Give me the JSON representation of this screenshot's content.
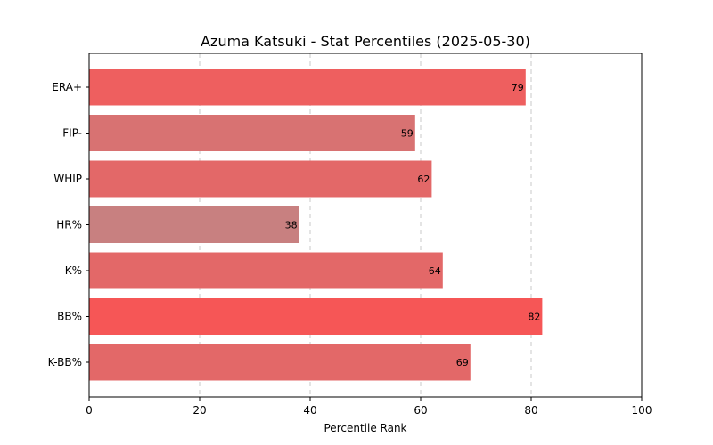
{
  "chart_data": {
    "type": "bar",
    "orientation": "horizontal",
    "title": "Azuma Katsuki - Stat Percentiles (2025-05-30)",
    "xlabel": "Percentile Rank",
    "ylabel": "",
    "xlim": [
      0,
      100
    ],
    "xticks": [
      0,
      20,
      40,
      60,
      80,
      100
    ],
    "grid": "vertical-dashed",
    "categories": [
      "ERA+",
      "FIP-",
      "WHIP",
      "HR%",
      "K%",
      "BB%",
      "K-BB%"
    ],
    "values": [
      79,
      59,
      62,
      38,
      64,
      82,
      69
    ],
    "colors": [
      "#ee5f5f",
      "#d87272",
      "#e36868",
      "#c88080",
      "#e36868",
      "#f65656",
      "#e36868"
    ]
  }
}
